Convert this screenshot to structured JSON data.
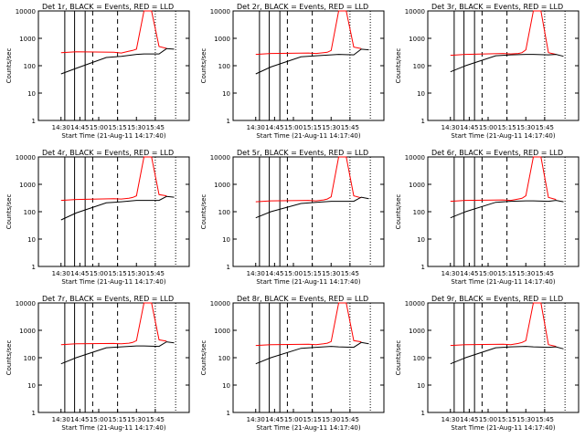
{
  "chart_data": [
    {
      "type": "line",
      "title": "Det 1r, BLACK = Events, RED = LLD",
      "xlabel": "Start Time (21-Aug-11 14:17:40)",
      "ylabel": "Counts/sec",
      "yscale": "log",
      "ylim": [
        1,
        10000
      ],
      "xticks": [
        "14:30",
        "14:45",
        "15:00",
        "15:15",
        "15:30",
        "15:45"
      ],
      "ytick_labels": [
        "1",
        "10",
        "100",
        "1000",
        "10000"
      ],
      "legend": [
        "BLACK = Events",
        "RED = LLD"
      ],
      "series": [
        {
          "name": "LLD",
          "color": "#ff0000",
          "x": [
            14.3,
            14.5,
            15.0,
            15.1,
            15.2,
            15.25,
            15.3,
            15.4,
            15.5,
            15.6,
            15.7
          ],
          "y": [
            300,
            320,
            310,
            290,
            340,
            360,
            400,
            10000,
            10000,
            500,
            430
          ]
        },
        {
          "name": "Events",
          "color": "#000000",
          "x": [
            14.3,
            14.5,
            14.9,
            15.1,
            15.3,
            15.4,
            15.6,
            15.7,
            15.8
          ],
          "y": [
            50,
            80,
            200,
            220,
            260,
            270,
            270,
            420,
            400
          ]
        }
      ]
    },
    {
      "type": "line",
      "title": "Det 2r, BLACK = Events, RED = LLD",
      "xlabel": "Start Time (21-Aug-11 14:17:40)",
      "ylabel": "Counts/sec",
      "yscale": "log",
      "ylim": [
        1,
        10000
      ],
      "xticks": [
        "14:30",
        "14:45",
        "15:00",
        "15:15",
        "15:30",
        "15:45"
      ],
      "ytick_labels": [
        "1",
        "10",
        "100",
        "1000",
        "10000"
      ],
      "legend": [
        "BLACK = Events",
        "RED = LLD"
      ],
      "series": [
        {
          "name": "LLD",
          "color": "#ff0000",
          "x": [
            14.3,
            14.5,
            15.0,
            15.1,
            15.2,
            15.25,
            15.3,
            15.4,
            15.5,
            15.6,
            15.7
          ],
          "y": [
            260,
            280,
            290,
            280,
            300,
            310,
            360,
            10000,
            10000,
            480,
            420
          ]
        },
        {
          "name": "Events",
          "color": "#000000",
          "x": [
            14.3,
            14.5,
            14.9,
            15.1,
            15.3,
            15.4,
            15.6,
            15.7,
            15.8
          ],
          "y": [
            50,
            90,
            210,
            230,
            250,
            260,
            250,
            400,
            380
          ]
        }
      ]
    },
    {
      "type": "line",
      "title": "Det 3r, BLACK = Events, RED = LLD",
      "xlabel": "Start Time (21-Aug-11 14:17:40)",
      "ylabel": "Counts/sec",
      "yscale": "log",
      "ylim": [
        1,
        10000
      ],
      "xticks": [
        "14:30",
        "14:45",
        "15:00",
        "15:15",
        "15:30",
        "15:45"
      ],
      "ytick_labels": [
        "1",
        "10",
        "100",
        "1000",
        "10000"
      ],
      "legend": [
        "BLACK = Events",
        "RED = LLD"
      ],
      "series": [
        {
          "name": "LLD",
          "color": "#ff0000",
          "x": [
            14.3,
            14.5,
            15.0,
            15.1,
            15.2,
            15.25,
            15.3,
            15.4,
            15.5,
            15.6,
            15.7
          ],
          "y": [
            240,
            260,
            280,
            270,
            280,
            300,
            380,
            10000,
            10000,
            300,
            260
          ]
        },
        {
          "name": "Events",
          "color": "#000000",
          "x": [
            14.3,
            14.5,
            14.9,
            15.1,
            15.3,
            15.4,
            15.6,
            15.7,
            15.8
          ],
          "y": [
            60,
            100,
            230,
            250,
            260,
            260,
            250,
            260,
            220
          ]
        }
      ]
    },
    {
      "type": "line",
      "title": "Det 4r, BLACK = Events, RED = LLD",
      "xlabel": "Start Time (21-Aug-11 14:17:40)",
      "ylabel": "Counts/sec",
      "yscale": "log",
      "ylim": [
        1,
        10000
      ],
      "xticks": [
        "14:30",
        "14:45",
        "15:00",
        "15:15",
        "15:30",
        "15:45"
      ],
      "ytick_labels": [
        "1",
        "10",
        "100",
        "1000",
        "10000"
      ],
      "legend": [
        "BLACK = Events",
        "RED = LLD"
      ],
      "series": [
        {
          "name": "LLD",
          "color": "#ff0000",
          "x": [
            14.3,
            14.5,
            15.0,
            15.1,
            15.2,
            15.25,
            15.3,
            15.4,
            15.5,
            15.6,
            15.7
          ],
          "y": [
            260,
            280,
            300,
            290,
            310,
            330,
            380,
            10000,
            10000,
            420,
            380
          ]
        },
        {
          "name": "Events",
          "color": "#000000",
          "x": [
            14.3,
            14.5,
            14.9,
            15.1,
            15.3,
            15.4,
            15.6,
            15.7,
            15.8
          ],
          "y": [
            50,
            90,
            210,
            230,
            260,
            260,
            260,
            360,
            340
          ]
        }
      ]
    },
    {
      "type": "line",
      "title": "Det 5r, BLACK = Events, RED = LLD",
      "xlabel": "Start Time (21-Aug-11 14:17:40)",
      "ylabel": "Counts/sec",
      "yscale": "log",
      "ylim": [
        1,
        10000
      ],
      "xticks": [
        "14:30",
        "14:45",
        "15:00",
        "15:15",
        "15:30",
        "15:45"
      ],
      "ytick_labels": [
        "1",
        "10",
        "100",
        "1000",
        "10000"
      ],
      "legend": [
        "BLACK = Events",
        "RED = LLD"
      ],
      "series": [
        {
          "name": "LLD",
          "color": "#ff0000",
          "x": [
            14.3,
            14.5,
            15.0,
            15.1,
            15.2,
            15.25,
            15.3,
            15.4,
            15.5,
            15.6,
            15.7
          ],
          "y": [
            230,
            250,
            260,
            250,
            270,
            290,
            350,
            10000,
            10000,
            380,
            320
          ]
        },
        {
          "name": "Events",
          "color": "#000000",
          "x": [
            14.3,
            14.5,
            14.9,
            15.1,
            15.3,
            15.4,
            15.6,
            15.7,
            15.8
          ],
          "y": [
            60,
            100,
            200,
            220,
            240,
            240,
            240,
            340,
            300
          ]
        }
      ]
    },
    {
      "type": "line",
      "title": "Det 6r, BLACK = Events, RED = LLD",
      "xlabel": "Start Time (21-Aug-11 14:17:40)",
      "ylabel": "Counts/sec",
      "yscale": "log",
      "ylim": [
        1,
        10000
      ],
      "xticks": [
        "14:30",
        "14:45",
        "15:00",
        "15:15",
        "15:30",
        "15:45"
      ],
      "ytick_labels": [
        "1",
        "10",
        "100",
        "1000",
        "10000"
      ],
      "legend": [
        "BLACK = Events",
        "RED = LLD"
      ],
      "series": [
        {
          "name": "LLD",
          "color": "#ff0000",
          "x": [
            14.3,
            14.5,
            15.0,
            15.1,
            15.2,
            15.25,
            15.3,
            15.4,
            15.5,
            15.6,
            15.7
          ],
          "y": [
            240,
            260,
            270,
            260,
            290,
            310,
            380,
            10000,
            10000,
            330,
            280
          ]
        },
        {
          "name": "Events",
          "color": "#000000",
          "x": [
            14.3,
            14.5,
            14.9,
            15.1,
            15.3,
            15.4,
            15.6,
            15.7,
            15.8
          ],
          "y": [
            60,
            100,
            220,
            240,
            250,
            250,
            240,
            260,
            230
          ]
        }
      ]
    },
    {
      "type": "line",
      "title": "Det 7r, BLACK = Events, RED = LLD",
      "xlabel": "Start Time (21-Aug-11 14:17:40)",
      "ylabel": "Counts/sec",
      "yscale": "log",
      "ylim": [
        1,
        10000
      ],
      "xticks": [
        "14:30",
        "14:45",
        "15:00",
        "15:15",
        "15:30",
        "15:45"
      ],
      "ytick_labels": [
        "1",
        "10",
        "100",
        "1000",
        "10000"
      ],
      "legend": [
        "BLACK = Events",
        "RED = LLD"
      ],
      "series": [
        {
          "name": "LLD",
          "color": "#ff0000",
          "x": [
            14.3,
            14.5,
            15.0,
            15.1,
            15.2,
            15.25,
            15.3,
            15.4,
            15.5,
            15.6,
            15.7
          ],
          "y": [
            300,
            320,
            330,
            320,
            340,
            360,
            420,
            10000,
            10000,
            450,
            400
          ]
        },
        {
          "name": "Events",
          "color": "#000000",
          "x": [
            14.3,
            14.5,
            14.9,
            15.1,
            15.3,
            15.4,
            15.6,
            15.7,
            15.8
          ],
          "y": [
            60,
            100,
            230,
            250,
            270,
            270,
            260,
            380,
            350
          ]
        }
      ]
    },
    {
      "type": "line",
      "title": "Det 8r, BLACK = Events, RED = LLD",
      "xlabel": "Start Time (21-Aug-11 14:17:40)",
      "ylabel": "Counts/sec",
      "yscale": "log",
      "ylim": [
        1,
        10000
      ],
      "xticks": [
        "14:30",
        "14:45",
        "15:00",
        "15:15",
        "15:30",
        "15:45"
      ],
      "ytick_labels": [
        "1",
        "10",
        "100",
        "1000",
        "10000"
      ],
      "legend": [
        "BLACK = Events",
        "RED = LLD"
      ],
      "series": [
        {
          "name": "LLD",
          "color": "#ff0000",
          "x": [
            14.3,
            14.5,
            15.0,
            15.1,
            15.2,
            15.25,
            15.3,
            15.4,
            15.5,
            15.6,
            15.7
          ],
          "y": [
            280,
            300,
            310,
            300,
            320,
            340,
            390,
            10000,
            10000,
            420,
            380
          ]
        },
        {
          "name": "Events",
          "color": "#000000",
          "x": [
            14.3,
            14.5,
            14.9,
            15.1,
            15.3,
            15.4,
            15.6,
            15.7,
            15.8
          ],
          "y": [
            60,
            100,
            220,
            240,
            260,
            250,
            240,
            360,
            320
          ]
        }
      ]
    },
    {
      "type": "line",
      "title": "Det 9r, BLACK = Events, RED = LLD",
      "xlabel": "Start Time (21-Aug-11 14:17:40)",
      "ylabel": "Counts/sec",
      "yscale": "log",
      "ylim": [
        1,
        10000
      ],
      "xticks": [
        "14:30",
        "14:45",
        "15:00",
        "15:15",
        "15:30",
        "15:45"
      ],
      "ytick_labels": [
        "1",
        "10",
        "100",
        "1000",
        "10000"
      ],
      "legend": [
        "BLACK = Events",
        "RED = LLD"
      ],
      "series": [
        {
          "name": "LLD",
          "color": "#ff0000",
          "x": [
            14.3,
            14.5,
            15.0,
            15.1,
            15.2,
            15.25,
            15.3,
            15.4,
            15.5,
            15.6,
            15.7
          ],
          "y": [
            280,
            300,
            310,
            300,
            330,
            360,
            420,
            10000,
            10000,
            300,
            260
          ]
        },
        {
          "name": "Events",
          "color": "#000000",
          "x": [
            14.3,
            14.5,
            14.9,
            15.1,
            15.3,
            15.4,
            15.6,
            15.7,
            15.8
          ],
          "y": [
            60,
            100,
            230,
            250,
            260,
            250,
            240,
            250,
            210
          ]
        }
      ]
    }
  ]
}
